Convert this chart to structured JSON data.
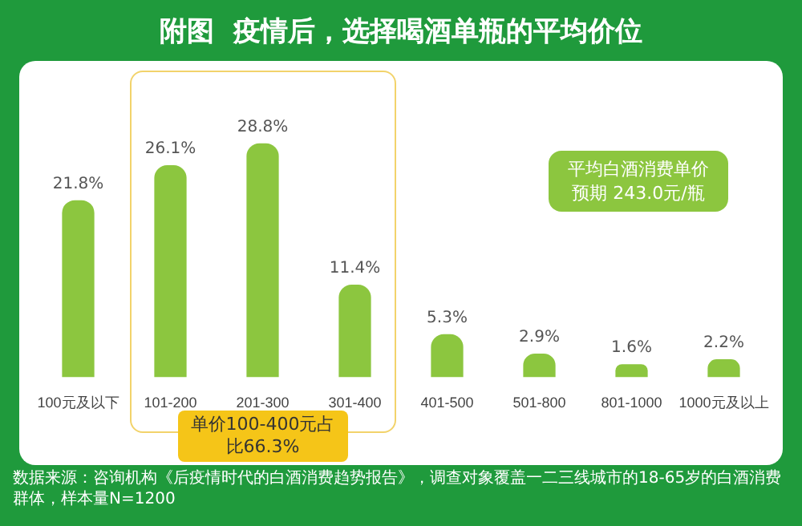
{
  "chart_data": {
    "type": "bar",
    "title": "附图  疫情后，选择喝酒单瓶的平均价位",
    "categories": [
      "100元及以下",
      "101-200",
      "201-300",
      "301-400",
      "401-500",
      "501-800",
      "801-1000",
      "1000元及以上"
    ],
    "values": [
      21.8,
      26.1,
      28.8,
      11.4,
      5.3,
      2.9,
      1.6,
      2.2
    ],
    "value_labels": [
      "21.8%",
      "26.1%",
      "28.8%",
      "11.4%",
      "5.3%",
      "2.9%",
      "1.6%",
      "2.2%"
    ],
    "color": "#8cc63f",
    "annotations": [
      "平均白酒消费单价预期 243.0元/瓶",
      "单价100-400元占比66.3%",
      "数据来源：咨询机构《后疫情时代的白酒消费趋势报告》，调查对象覆盖一二三线城市的18-65岁的白酒消费群体，样本量N=1200"
    ],
    "grid": false,
    "legend": false
  }
}
